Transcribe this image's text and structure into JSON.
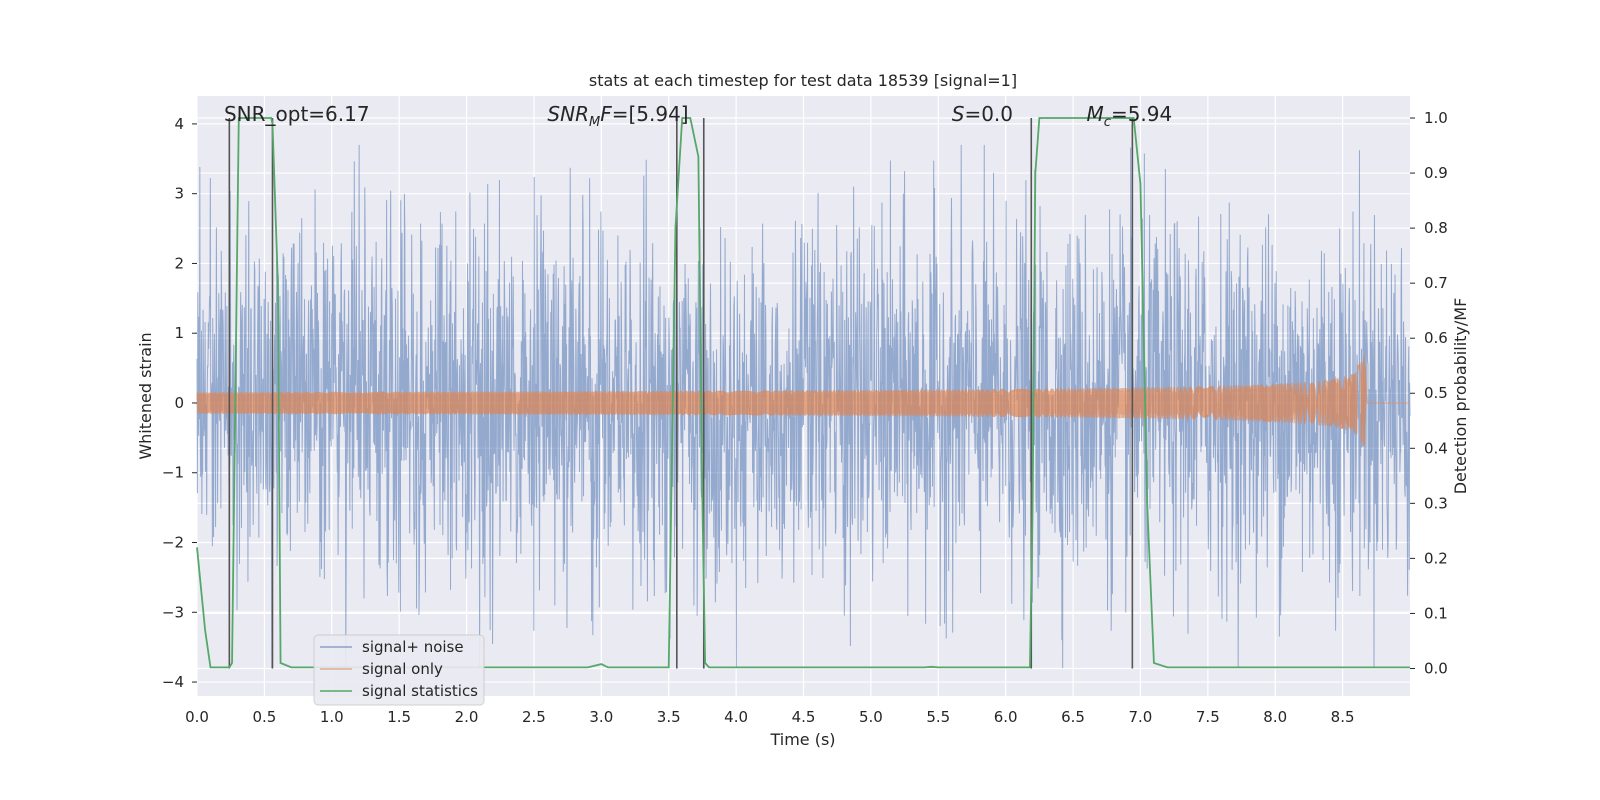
{
  "chart_data": {
    "type": "line",
    "title": "stats at each timestep for test data 18539 [signal=1]",
    "xlabel": "Time (s)",
    "ylabel": "Whitened strain",
    "ylabel_right": "Detection probability/MF",
    "xlim": [
      0.0,
      9.0
    ],
    "ylim": [
      -4.2,
      4.4
    ],
    "ylim_right": [
      -0.05,
      1.04
    ],
    "x_ticks": [
      "0.0",
      "0.5",
      "1.0",
      "1.5",
      "2.0",
      "2.5",
      "3.0",
      "3.5",
      "4.0",
      "4.5",
      "5.0",
      "5.5",
      "6.0",
      "6.5",
      "7.0",
      "7.5",
      "8.0",
      "8.5"
    ],
    "y_ticks": [
      "4",
      "3",
      "2",
      "1",
      "0",
      "−1",
      "−2",
      "−3",
      "−4"
    ],
    "y_ticks_right": [
      "1.0",
      "0.9",
      "0.8",
      "0.7",
      "0.6",
      "0.5",
      "0.4",
      "0.3",
      "0.2",
      "0.1",
      "0.0"
    ],
    "grid": true,
    "legend_position": "lower-left",
    "annotations": [
      {
        "prefix": "SNR_opt=6.17",
        "sub": "",
        "suffix": "",
        "italic": false,
        "x": 0.2
      },
      {
        "prefix": "SNR",
        "sub": "M",
        "suffix": "F=[5.94]",
        "italic": true,
        "x": 2.6
      },
      {
        "prefix": "S",
        "sub": "",
        "suffix": "=0.0",
        "italic": true,
        "x": 5.6
      },
      {
        "prefix": "M",
        "sub": "c",
        "suffix": "=5.94",
        "italic": true,
        "x": 6.6
      }
    ],
    "series": [
      {
        "name": "signal+ noise",
        "color": "#4c72b0",
        "axis": "left",
        "x_range": [
          0.0,
          9.0
        ],
        "typical_envelope": [
          -1.6,
          1.6
        ],
        "peak_range": [
          -3.8,
          3.7
        ]
      },
      {
        "name": "signal only",
        "color": "#dd8452",
        "axis": "left",
        "x_range": [
          0.0,
          8.67
        ],
        "amplitude_start": 0.02,
        "amplitude_peak": 0.75,
        "peak_time": 8.67
      },
      {
        "name": "signal statistics",
        "color": "#55a868",
        "axis": "right",
        "x": [
          0.0,
          0.06,
          0.1,
          0.24,
          0.26,
          0.31,
          0.55,
          0.56,
          0.6,
          0.62,
          0.7,
          2.9,
          3.0,
          3.05,
          3.5,
          3.55,
          3.6,
          3.66,
          3.72,
          3.75,
          3.77,
          3.8,
          3.85,
          5.4,
          5.45,
          5.5,
          6.18,
          6.2,
          6.22,
          6.25,
          6.95,
          7.0,
          7.05,
          7.1,
          7.2,
          9.0
        ],
        "y": [
          0.22,
          0.07,
          0.002,
          0.002,
          0.01,
          1.0,
          1.0,
          0.99,
          0.7,
          0.01,
          0.002,
          0.002,
          0.008,
          0.002,
          0.002,
          0.8,
          1.0,
          1.0,
          0.93,
          0.3,
          0.01,
          0.002,
          0.002,
          0.002,
          0.003,
          0.002,
          0.002,
          0.3,
          0.9,
          1.0,
          1.0,
          0.88,
          0.3,
          0.01,
          0.002,
          0.002
        ]
      }
    ],
    "vertical_lines": [
      0.24,
      0.56,
      3.56,
      3.76,
      6.19,
      6.94
    ],
    "vertical_line_color": "#555555",
    "legend": [
      "signal+ noise",
      "signal only",
      "signal statistics"
    ]
  }
}
